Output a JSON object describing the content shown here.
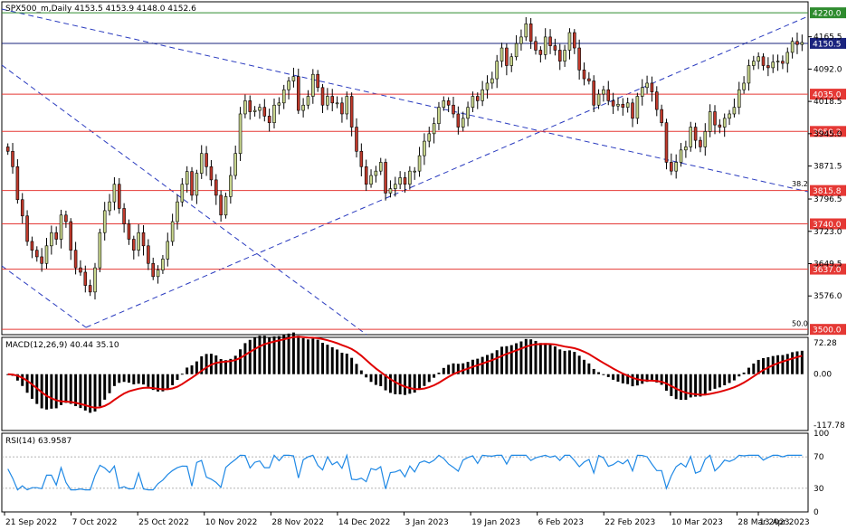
{
  "chart_data": [
    {
      "type": "candlestick",
      "title": "SPX500_m,Daily 4153.5 4153.9 4148.0 4152.6",
      "symbol": "SPX500_m",
      "timeframe": "Daily",
      "ohlc_last": {
        "open": 4153.5,
        "high": 4153.9,
        "low": 4148.0,
        "close": 4152.6
      },
      "y_ticks": [
        4165.5,
        4092.0,
        4018.5,
        3945.0,
        3871.5,
        3796.5,
        3723.0,
        3649.5,
        3576.0
      ],
      "ylim": [
        3488,
        4245
      ],
      "x_labels": [
        "21 Sep 2022",
        "7 Oct 2022",
        "25 Oct 2022",
        "10 Nov 2022",
        "28 Nov 2022",
        "14 Dec 2022",
        "3 Jan 2023",
        "19 Jan 2023",
        "6 Feb 2023",
        "22 Feb 2023",
        "10 Mar 2023",
        "28 Mar 2023",
        "13 Apr 2023"
      ],
      "up_color": "#c8d68c",
      "down_color": "#c0392b",
      "horizontal_levels": [
        {
          "price": 4220.0,
          "label": "4220.0",
          "color": "#2e8b2e"
        },
        {
          "price": 4150.5,
          "label": "4150.5",
          "color": "#1a237e"
        },
        {
          "price": 4035.0,
          "label": "4035.0",
          "color": "#e53935"
        },
        {
          "price": 3950.2,
          "label": "3950.2",
          "color": "#e53935"
        },
        {
          "price": 3815.8,
          "label": "3815.8",
          "color": "#e53935"
        },
        {
          "price": 3740.0,
          "label": "3740.0",
          "color": "#e53935"
        },
        {
          "price": 3637.0,
          "label": "3637.0",
          "color": "#e53935"
        },
        {
          "price": 3500.0,
          "label": "3500.0",
          "color": "#e53935"
        }
      ],
      "fib_labels": [
        {
          "text": "38.2",
          "price": 3825
        },
        {
          "text": "50.0",
          "price": 3508
        }
      ],
      "closes": [
        3905,
        3870,
        3795,
        3758,
        3700,
        3680,
        3665,
        3650,
        3690,
        3720,
        3705,
        3760,
        3745,
        3680,
        3640,
        3630,
        3600,
        3585,
        3640,
        3720,
        3770,
        3790,
        3830,
        3775,
        3740,
        3705,
        3680,
        3720,
        3690,
        3650,
        3620,
        3635,
        3660,
        3700,
        3745,
        3790,
        3830,
        3859,
        3805,
        3855,
        3900,
        3870,
        3840,
        3805,
        3760,
        3802,
        3850,
        3900,
        3990,
        4020,
        3995,
        3998,
        4005,
        3985,
        3970,
        4010,
        4015,
        4045,
        4065,
        4075,
        3998,
        4010,
        4030,
        4080,
        4050,
        4010,
        4030,
        4015,
        4015,
        3990,
        4030,
        3960,
        3905,
        3870,
        3830,
        3850,
        3860,
        3880,
        3810,
        3820,
        3830,
        3845,
        3830,
        3860,
        3860,
        3895,
        3928,
        3945,
        3968,
        4005,
        4020,
        4010,
        3990,
        3960,
        3980,
        4005,
        4030,
        4020,
        4045,
        4060,
        4070,
        4110,
        4140,
        4100,
        4120,
        4150,
        4165,
        4195,
        4155,
        4135,
        4125,
        4165,
        4145,
        4135,
        4110,
        4135,
        4175,
        4140,
        4090,
        4070,
        4065,
        4010,
        4035,
        4045,
        4020,
        4008,
        4012,
        4005,
        4015,
        3980,
        4030,
        4050,
        4060,
        4040,
        4000,
        3970,
        3880,
        3860,
        3880,
        3908,
        3915,
        3960,
        3930,
        3915,
        3950,
        3995,
        3965,
        3960,
        3980,
        3990,
        4005,
        4045,
        4060,
        4100,
        4110,
        4120,
        4100,
        4095,
        4108,
        4110,
        4105,
        4130,
        4155,
        4148,
        4152.6
      ],
      "macd": {
        "label": "MACD(12,26,9) 40.44 35.10",
        "histogram": 40.44,
        "signal": 35.1,
        "ylim": [
          -130,
          85
        ],
        "y_ticks": [
          72.28,
          0.0,
          -117.78
        ]
      },
      "rsi": {
        "label": "RSI(14) 63.9587",
        "value": 63.9587,
        "y_ticks": [
          100,
          70,
          30,
          0
        ],
        "levels": [
          70,
          30
        ]
      }
    }
  ]
}
